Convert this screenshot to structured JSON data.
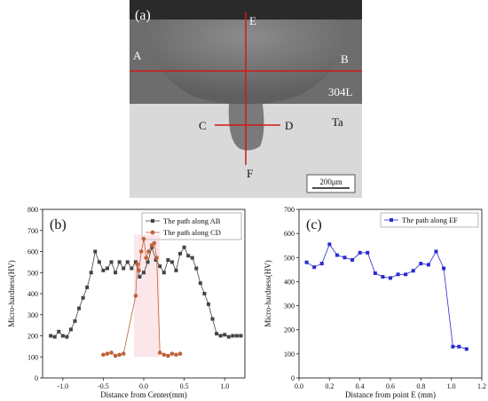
{
  "micrograph": {
    "panel_label": "(a)",
    "labels": {
      "A": "A",
      "B": "B",
      "C": "C",
      "D": "D",
      "E": "E",
      "F": "F"
    },
    "material_top": "304L",
    "material_bottom": "Ta",
    "scale_bar": "200μm"
  },
  "chart_data": [
    {
      "type": "line",
      "panel_label": "(b)",
      "xlabel": "Distance from Center(mm)",
      "ylabel": "Micro-hardness(HV)",
      "xlim": [
        -1.25,
        1.25
      ],
      "ylim": [
        0,
        800
      ],
      "xticks": [
        "-1.0",
        "-0.5",
        "0.0",
        "0.5",
        "1.0"
      ],
      "yticks": [
        "0",
        "100",
        "200",
        "300",
        "400",
        "500",
        "600",
        "700",
        "800"
      ],
      "legend_position": "top-right",
      "series": [
        {
          "name": "The path along AB",
          "color": "#444444",
          "marker": "square",
          "x": [
            -1.15,
            -1.1,
            -1.05,
            -1.0,
            -0.95,
            -0.9,
            -0.85,
            -0.8,
            -0.75,
            -0.7,
            -0.65,
            -0.6,
            -0.55,
            -0.5,
            -0.45,
            -0.4,
            -0.35,
            -0.3,
            -0.25,
            -0.2,
            -0.15,
            -0.1,
            -0.05,
            0.0,
            0.05,
            0.1,
            0.15,
            0.2,
            0.25,
            0.3,
            0.35,
            0.4,
            0.45,
            0.5,
            0.55,
            0.6,
            0.65,
            0.7,
            0.75,
            0.8,
            0.85,
            0.9,
            0.95,
            1.0,
            1.05,
            1.1,
            1.15,
            1.2
          ],
          "y": [
            200,
            195,
            220,
            200,
            195,
            230,
            270,
            330,
            380,
            430,
            500,
            600,
            550,
            510,
            520,
            550,
            500,
            550,
            520,
            550,
            520,
            550,
            480,
            500,
            550,
            620,
            560,
            530,
            500,
            560,
            550,
            510,
            590,
            620,
            580,
            570,
            520,
            450,
            400,
            350,
            280,
            210,
            200,
            205,
            195,
            200,
            200,
            200
          ]
        },
        {
          "name": "The path along CD",
          "color": "#c0623a",
          "marker": "circle",
          "x": [
            -0.5,
            -0.45,
            -0.4,
            -0.35,
            -0.3,
            -0.25,
            -0.1,
            -0.08,
            -0.06,
            -0.03,
            0.0,
            0.03,
            0.06,
            0.1,
            0.13,
            0.16,
            0.2,
            0.25,
            0.3,
            0.35,
            0.4,
            0.45
          ],
          "y": [
            110,
            115,
            120,
            105,
            110,
            115,
            390,
            540,
            510,
            600,
            660,
            570,
            600,
            630,
            640,
            570,
            120,
            110,
            105,
            115,
            110,
            115
          ]
        }
      ]
    },
    {
      "type": "line",
      "panel_label": "(c)",
      "xlabel": "Distance from point E (mm)",
      "ylabel": "Micro-hardness(HV)",
      "xlim": [
        0,
        1.2
      ],
      "ylim": [
        0,
        700
      ],
      "xticks": [
        "0.0",
        "0.2",
        "0.4",
        "0.6",
        "0.8",
        "1.0",
        "1.2"
      ],
      "yticks": [
        "0",
        "100",
        "200",
        "300",
        "400",
        "500",
        "600",
        "700"
      ],
      "legend_position": "top-right",
      "series": [
        {
          "name": "The path along EF",
          "color": "#2b2bd1",
          "marker": "square",
          "x": [
            0.05,
            0.1,
            0.15,
            0.2,
            0.25,
            0.3,
            0.35,
            0.4,
            0.45,
            0.5,
            0.55,
            0.6,
            0.65,
            0.7,
            0.75,
            0.8,
            0.85,
            0.9,
            0.95,
            1.01,
            1.05,
            1.1
          ],
          "y": [
            480,
            460,
            475,
            555,
            510,
            500,
            490,
            520,
            520,
            435,
            420,
            415,
            430,
            430,
            445,
            475,
            470,
            525,
            455,
            130,
            130,
            120
          ]
        }
      ]
    }
  ]
}
